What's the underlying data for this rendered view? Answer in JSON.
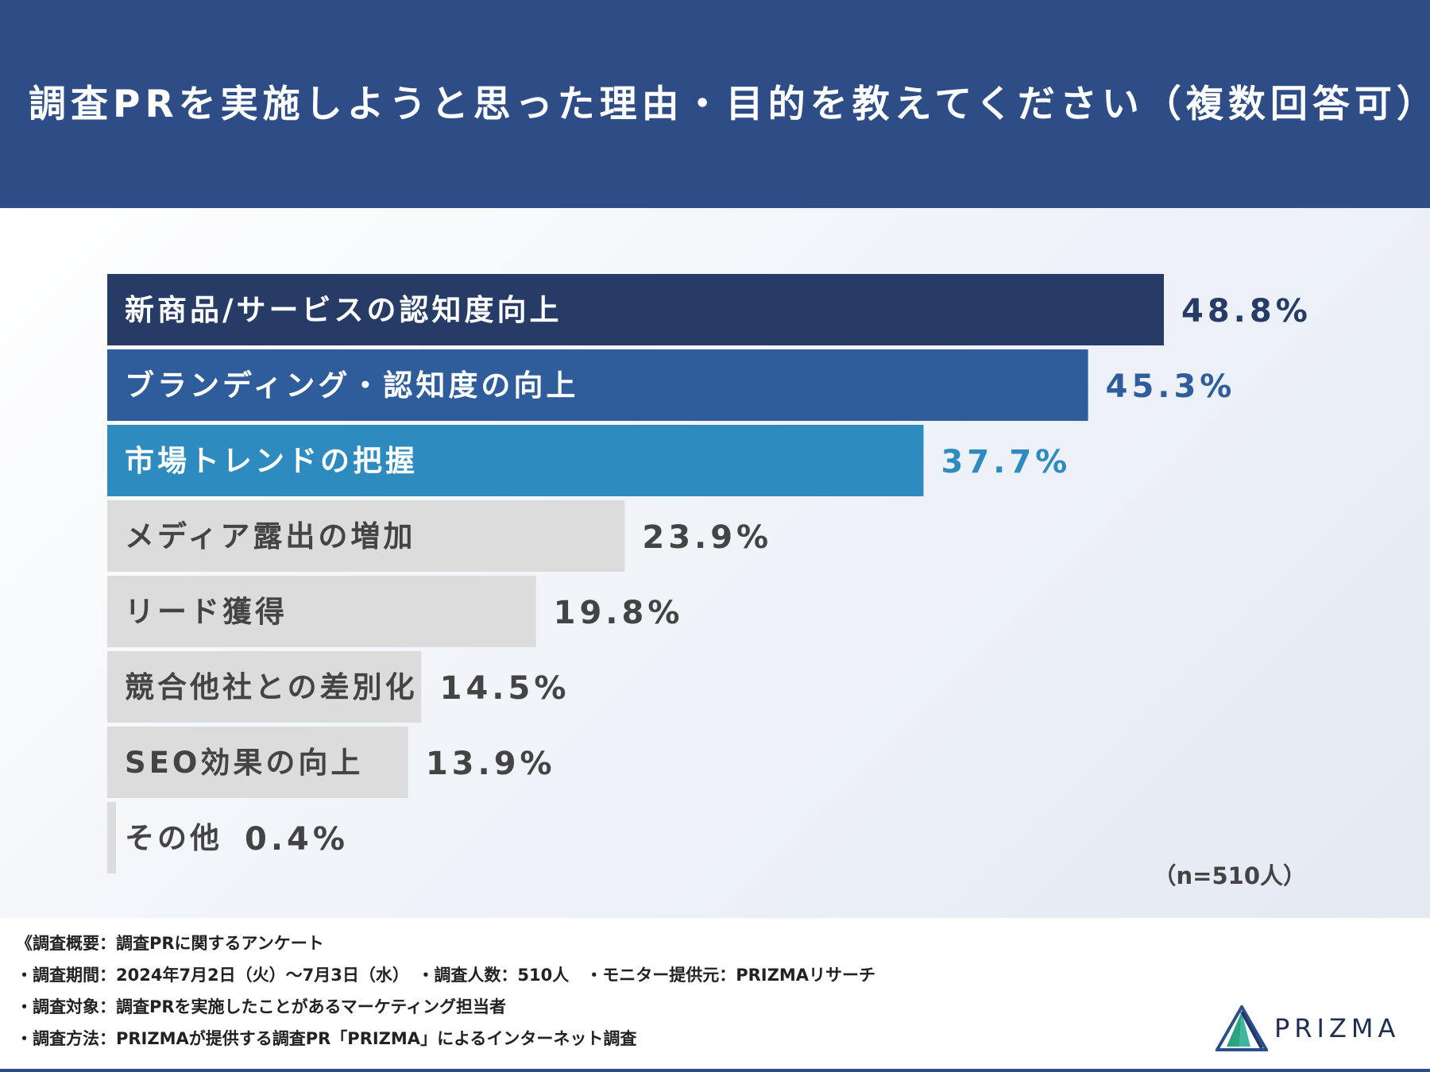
{
  "header": {
    "title": "調査PRを実施しようと思った理由・目的を教えてください（複数回答可）"
  },
  "chart_data": {
    "type": "bar",
    "orientation": "horizontal",
    "categories": [
      "新商品/サービスの認知度向上",
      "ブランディング・認知度の向上",
      "市場トレンドの把握",
      "メディア露出の増加",
      "リード獲得",
      "競合他社との差別化",
      "SEO効果の向上",
      "その他"
    ],
    "values": [
      48.8,
      45.3,
      37.7,
      23.9,
      19.8,
      14.5,
      13.9,
      0.4
    ],
    "value_labels": [
      "48.8%",
      "45.3%",
      "37.7%",
      "23.9%",
      "19.8%",
      "14.5%",
      "13.9%",
      "0.4%"
    ],
    "bar_colors": [
      "#263b66",
      "#2f5d9b",
      "#2e8bbf",
      "#dcdcdc",
      "#dcdcdc",
      "#dcdcdc",
      "#dcdcdc",
      "#dcdcdc"
    ],
    "label_colors": [
      "#ffffff",
      "#ffffff",
      "#ffffff",
      "#444444",
      "#444444",
      "#444444",
      "#444444",
      "#444444"
    ],
    "value_colors": [
      "#263b66",
      "#2f5d9b",
      "#2e8bbf",
      "#444444",
      "#444444",
      "#444444",
      "#444444",
      "#444444"
    ],
    "xlim": [
      0,
      48.8
    ],
    "grid": false,
    "title": "",
    "xlabel": "",
    "ylabel": ""
  },
  "sample_size": "（n=510人）",
  "footer": {
    "notes": [
      "《調査概要：調査PRに関するアンケート",
      "・調査期間：2024年7月2日（火）〜7月3日（水）　・調査人数：510人　・モニター提供元：PRIZMAリサーチ",
      "・調査対象：調査PRを実施したことがあるマーケティング担当者",
      "・調査方法：PRIZMAが提供する調査PR「PRIZMA」によるインターネット調査"
    ]
  },
  "logo": {
    "text": "PRIZMA",
    "icon": "prism-logo-icon"
  },
  "colors": {
    "header_bg": "#2e4d86",
    "accent_dark": "#263b66",
    "accent_mid": "#2f5d9b",
    "accent_light": "#2e8bbf",
    "neutral_bar": "#dcdcdc"
  }
}
